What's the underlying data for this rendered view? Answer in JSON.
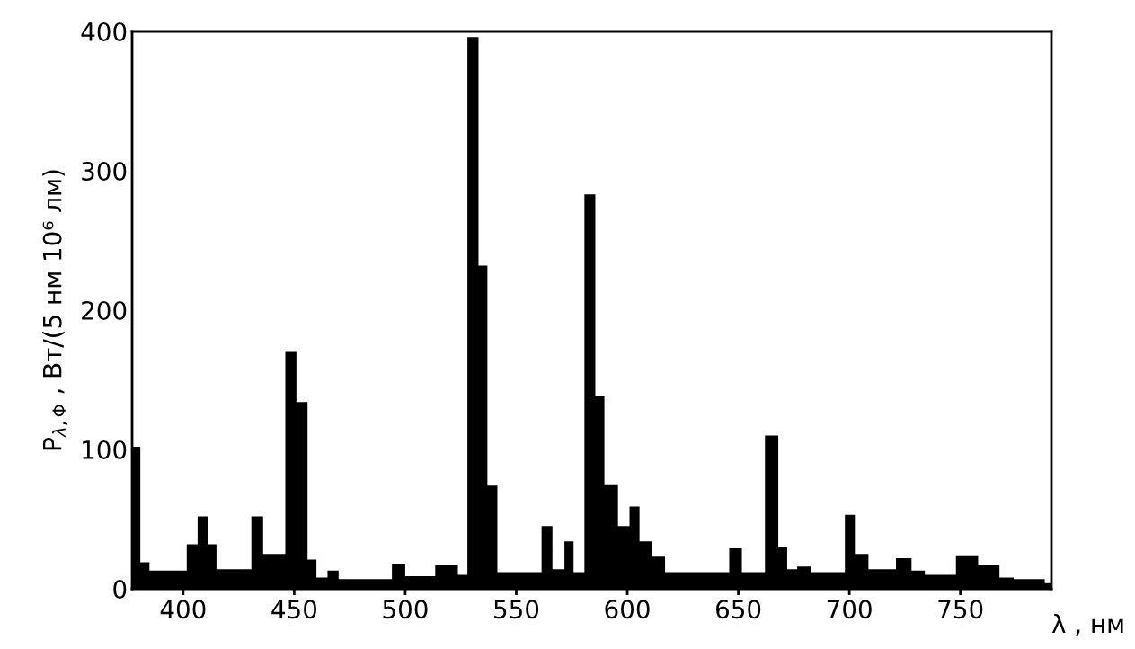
{
  "chart_data": {
    "type": "area",
    "xlabel": "λ , нм",
    "ylabel": "P$_{λ,Φ}$ , Вт/(5 нм 10⁶ лм)",
    "xlim": [
      377,
      791
    ],
    "ylim": [
      0,
      400
    ],
    "xticks": [
      400,
      450,
      500,
      550,
      600,
      650,
      700,
      750
    ],
    "yticks": [
      0,
      100,
      200,
      300,
      400
    ],
    "grid": false,
    "series": [
      {
        "color": "#000000",
        "x": [
          377,
          380.7,
          380.7,
          384.8,
          384.8,
          401.6,
          401.6,
          406.5,
          406.5,
          411,
          411,
          415,
          415,
          430.7,
          430.7,
          436,
          436,
          446,
          446,
          451,
          451,
          456,
          456,
          460,
          460,
          465,
          465,
          470,
          470,
          494,
          494,
          500,
          500,
          513.5,
          513.5,
          523.7,
          523.7,
          528,
          528,
          533,
          533,
          537,
          537,
          541.5,
          541.5,
          561.4,
          561.4,
          566.3,
          566.3,
          571.7,
          571.7,
          575.8,
          575.8,
          580.7,
          580.7,
          585.6,
          585.6,
          589.7,
          589.7,
          595.8,
          595.8,
          601,
          601,
          605.5,
          605.5,
          611,
          611,
          617,
          617,
          645.9,
          645.9,
          651.6,
          651.6,
          662,
          662,
          668,
          668,
          672,
          672,
          676.5,
          676.5,
          682.7,
          682.7,
          698,
          698,
          702.5,
          702.5,
          708.6,
          708.6,
          721,
          721,
          728,
          728,
          734,
          734,
          748,
          748,
          758,
          758,
          767.6,
          767.6,
          774,
          774,
          788,
          788,
          791
        ],
        "values": [
          102,
          102,
          19,
          19,
          13,
          13,
          32,
          32,
          52,
          52,
          32,
          32,
          14,
          14,
          52,
          52,
          25,
          25,
          170,
          170,
          134,
          134,
          21,
          21,
          8,
          8,
          13,
          13,
          7,
          7,
          18,
          18,
          9,
          9,
          17,
          17,
          10,
          10,
          396,
          396,
          232,
          232,
          74,
          74,
          12,
          12,
          45,
          45,
          14,
          14,
          34,
          34,
          12,
          12,
          283,
          283,
          138,
          138,
          75,
          75,
          45,
          45,
          59,
          59,
          34,
          34,
          23,
          23,
          12,
          12,
          29,
          29,
          12,
          12,
          110,
          110,
          30,
          30,
          14,
          14,
          16,
          16,
          12,
          12,
          53,
          53,
          25,
          25,
          14,
          14,
          22,
          22,
          13,
          13,
          10,
          10,
          24,
          24,
          17,
          17,
          8,
          8,
          7,
          7,
          4,
          4
        ]
      }
    ]
  }
}
